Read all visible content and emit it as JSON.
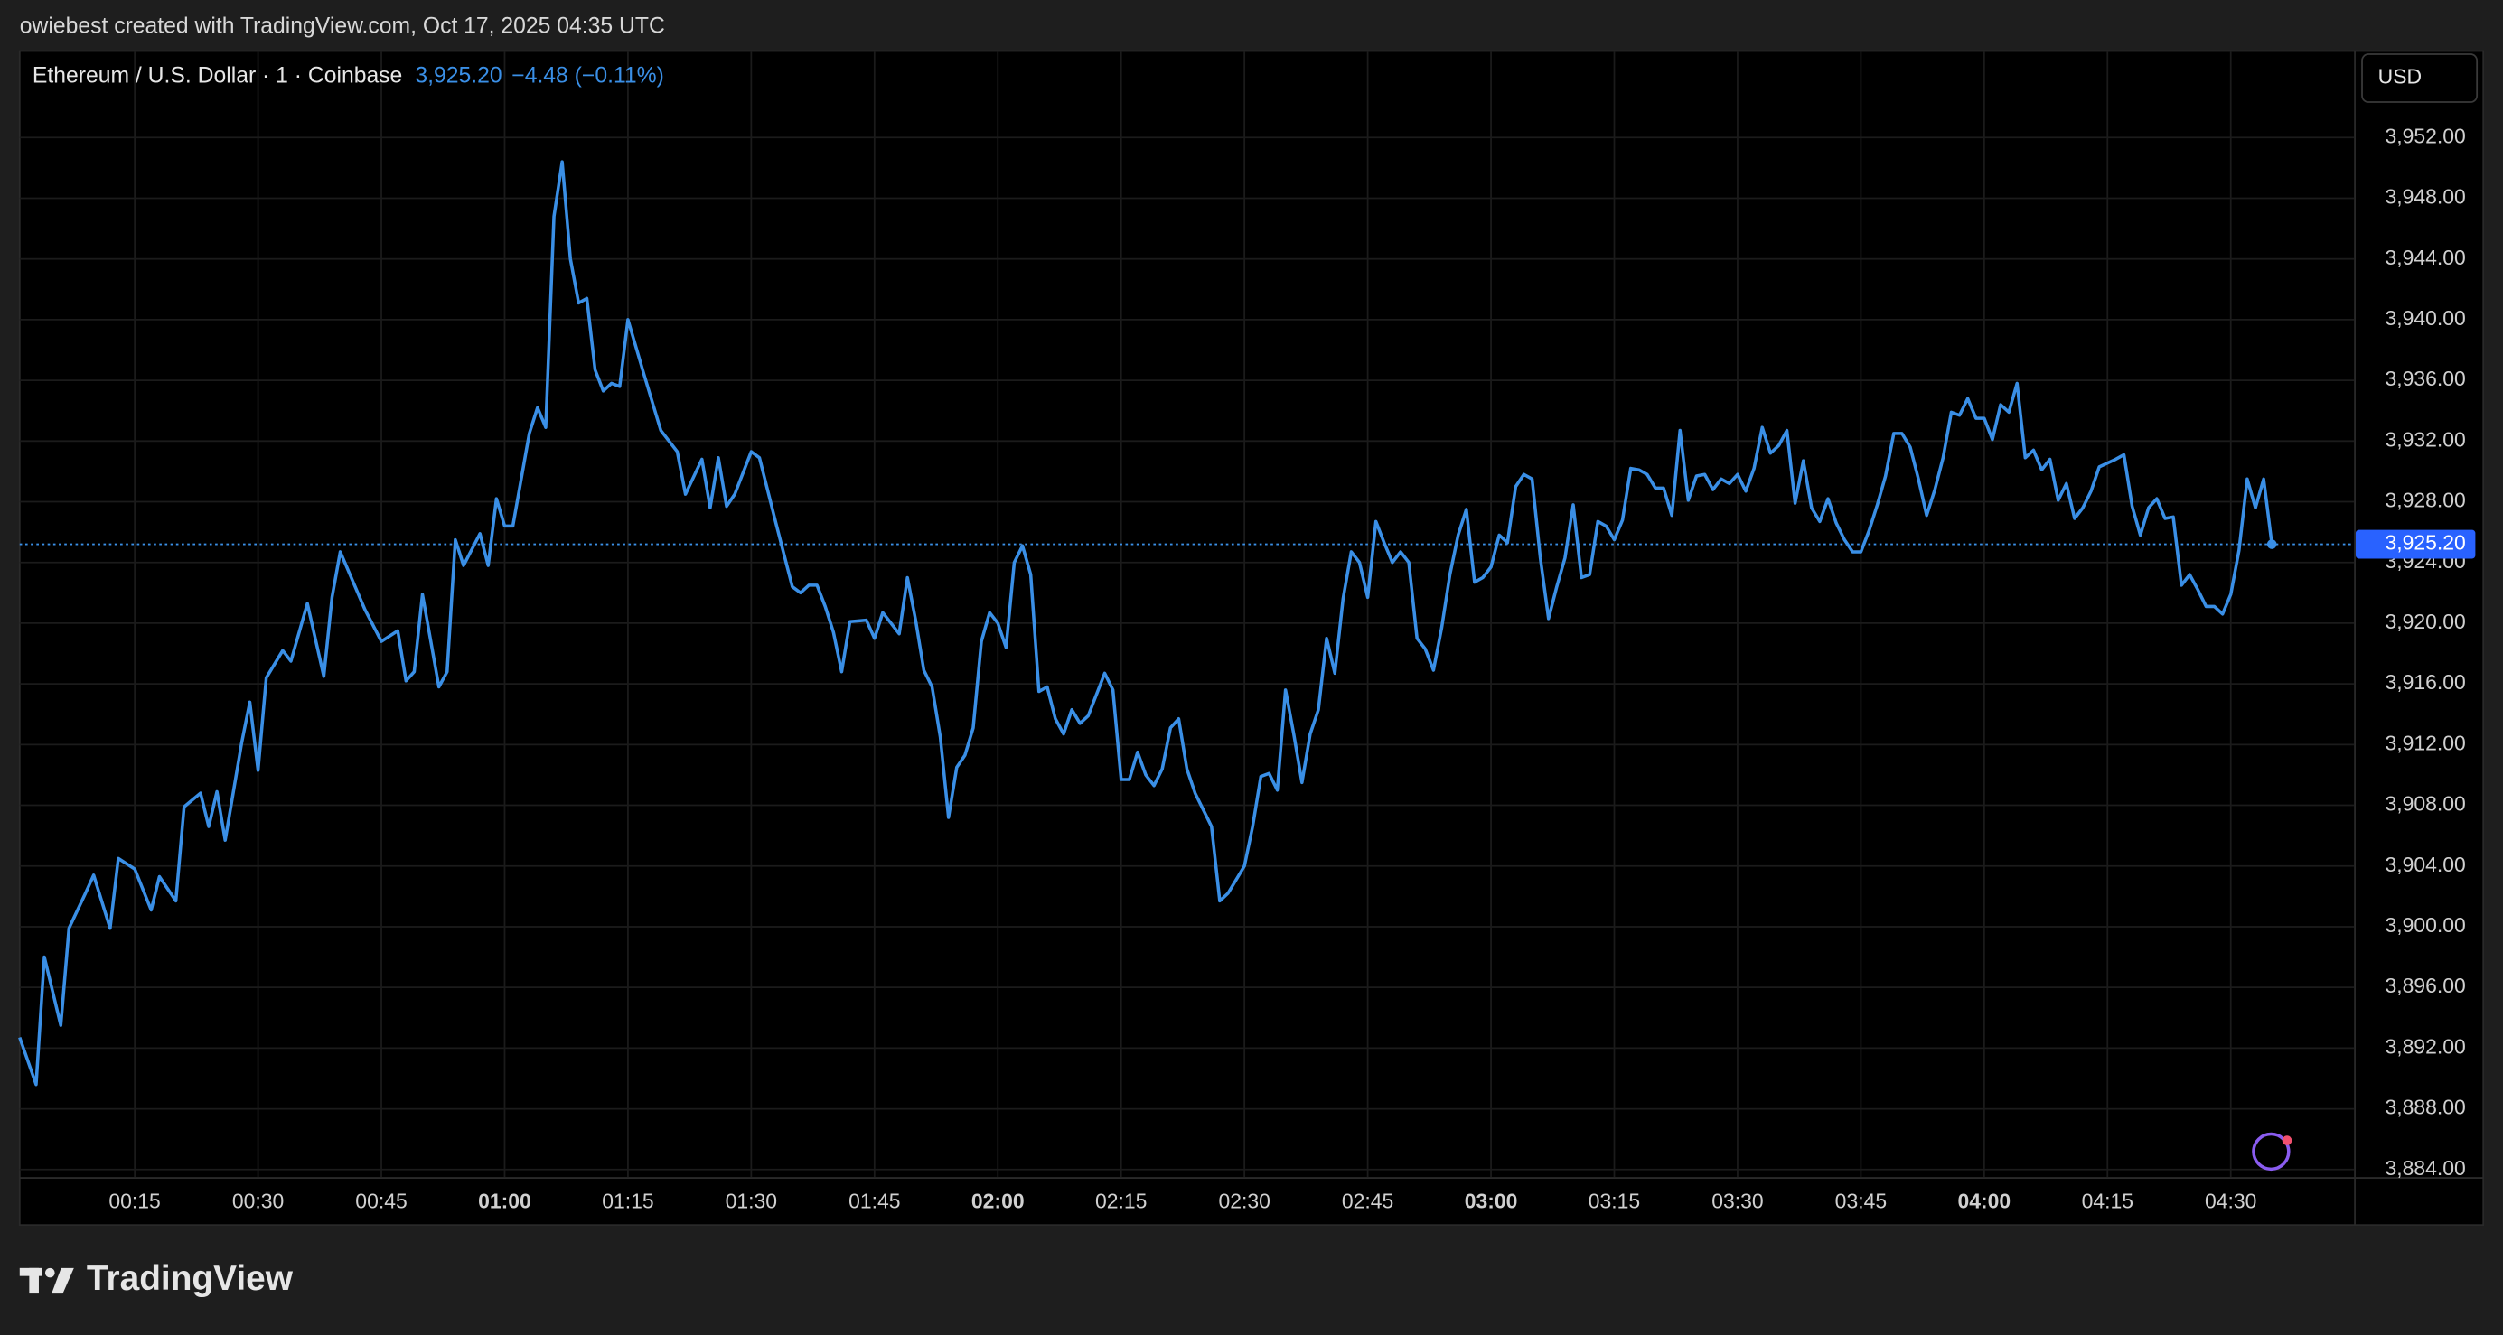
{
  "chart_data": {
    "type": "line",
    "attribution": "owiebest created with TradingView.com, Oct 17, 2025 04:35 UTC",
    "title": "Ethereum / U.S. Dollar · 1 · Coinbase",
    "price_text": "3,925.20",
    "change_text": "−4.48 (−0.11%)",
    "currency": "USD",
    "brand": "TradingView",
    "last_price": {
      "value": 3925.2,
      "label": "3,925.20"
    },
    "xlim": [
      "00:01",
      "04:45"
    ],
    "xticks": [
      "00:15",
      "00:30",
      "00:45",
      "01:00",
      "01:15",
      "01:30",
      "01:45",
      "02:00",
      "02:15",
      "02:30",
      "02:45",
      "03:00",
      "03:15",
      "03:30",
      "03:45",
      "04:00",
      "04:15",
      "04:30"
    ],
    "ylim": [
      3883.5,
      3957.7
    ],
    "yticks": [
      {
        "value": 3884,
        "label": "3,884.00"
      },
      {
        "value": 3888,
        "label": "3,888.00"
      },
      {
        "value": 3892,
        "label": "3,892.00"
      },
      {
        "value": 3896,
        "label": "3,896.00"
      },
      {
        "value": 3900,
        "label": "3,900.00"
      },
      {
        "value": 3904,
        "label": "3,904.00"
      },
      {
        "value": 3908,
        "label": "3,908.00"
      },
      {
        "value": 3912,
        "label": "3,912.00"
      },
      {
        "value": 3916,
        "label": "3,916.00"
      },
      {
        "value": 3920,
        "label": "3,920.00"
      },
      {
        "value": 3924,
        "label": "3,924.00"
      },
      {
        "value": 3928,
        "label": "3,928.00"
      },
      {
        "value": 3932,
        "label": "3,932.00"
      },
      {
        "value": 3936,
        "label": "3,936.00"
      },
      {
        "value": 3940,
        "label": "3,940.00"
      },
      {
        "value": 3944,
        "label": "3,944.00"
      },
      {
        "value": 3948,
        "label": "3,948.00"
      },
      {
        "value": 3952,
        "label": "3,952.00"
      }
    ],
    "grid": true,
    "series": [
      {
        "color": "#3a8fe6",
        "x": [
          "00:01",
          "00:03",
          "00:04",
          "00:06",
          "00:07",
          "00:09",
          "00:10",
          "00:12",
          "00:13",
          "00:15",
          "00:17",
          "00:18",
          "00:20",
          "00:21",
          "00:23",
          "00:24",
          "00:25",
          "00:26",
          "00:28",
          "00:29",
          "00:30",
          "00:31",
          "00:33",
          "00:34",
          "00:36",
          "00:38",
          "00:39",
          "00:40",
          "00:43",
          "00:45",
          "00:47",
          "00:48",
          "00:49",
          "00:50",
          "00:52",
          "00:53",
          "00:54",
          "00:55",
          "00:57",
          "00:58",
          "00:59",
          "01:00",
          "01:01",
          "01:03",
          "01:04",
          "01:05",
          "01:06",
          "01:07",
          "01:08",
          "01:09",
          "01:10",
          "01:11",
          "01:12",
          "01:13",
          "01:14",
          "01:15",
          "01:17",
          "01:19",
          "01:21",
          "01:22",
          "01:24",
          "01:25",
          "01:26",
          "01:27",
          "01:28",
          "01:30",
          "01:31",
          "01:33",
          "01:35",
          "01:36",
          "01:37",
          "01:38",
          "01:39",
          "01:40",
          "01:41",
          "01:42",
          "01:44",
          "01:45",
          "01:46",
          "01:48",
          "01:49",
          "01:50",
          "01:51",
          "01:52",
          "01:53",
          "01:54",
          "01:55",
          "01:56",
          "01:57",
          "01:58",
          "01:59",
          "02:00",
          "02:01",
          "02:02",
          "02:03",
          "02:04",
          "02:05",
          "02:06",
          "02:07",
          "02:08",
          "02:09",
          "02:10",
          "02:11",
          "02:13",
          "02:14",
          "02:15",
          "02:16",
          "02:17",
          "02:18",
          "02:19",
          "02:20",
          "02:21",
          "02:22",
          "02:23",
          "02:24",
          "02:26",
          "02:27",
          "02:28",
          "02:30",
          "02:31",
          "02:32",
          "02:33",
          "02:34",
          "02:35",
          "02:36",
          "02:37",
          "02:38",
          "02:39",
          "02:40",
          "02:41",
          "02:42",
          "02:43",
          "02:44",
          "02:45",
          "02:46",
          "02:47",
          "02:48",
          "02:49",
          "02:50",
          "02:51",
          "02:52",
          "02:53",
          "02:54",
          "02:55",
          "02:56",
          "02:57",
          "02:58",
          "02:59",
          "03:00",
          "03:01",
          "03:02",
          "03:03",
          "03:04",
          "03:05",
          "03:06",
          "03:07",
          "03:08",
          "03:09",
          "03:10",
          "03:11",
          "03:12",
          "03:13",
          "03:14",
          "03:15",
          "03:16",
          "03:17",
          "03:18",
          "03:19",
          "03:20",
          "03:21",
          "03:22",
          "03:23",
          "03:24",
          "03:25",
          "03:26",
          "03:27",
          "03:28",
          "03:29",
          "03:30",
          "03:31",
          "03:32",
          "03:33",
          "03:34",
          "03:35",
          "03:36",
          "03:37",
          "03:38",
          "03:39",
          "03:40",
          "03:41",
          "03:42",
          "03:43",
          "03:44",
          "03:45",
          "03:46",
          "03:47",
          "03:48",
          "03:49",
          "03:50",
          "03:51",
          "03:52",
          "03:53",
          "03:54",
          "03:55",
          "03:56",
          "03:57",
          "03:58",
          "03:59",
          "04:00",
          "04:01",
          "04:02",
          "04:03",
          "04:04",
          "04:05",
          "04:06",
          "04:07",
          "04:08",
          "04:09",
          "04:10",
          "04:11",
          "04:12",
          "04:13",
          "04:14",
          "04:16",
          "04:17",
          "04:18",
          "04:19",
          "04:20",
          "04:21",
          "04:22",
          "04:23",
          "04:24",
          "04:25",
          "04:26",
          "04:27",
          "04:28",
          "04:29",
          "04:30",
          "04:31",
          "04:32",
          "04:33",
          "04:34",
          "04:35"
        ],
        "values": [
          3892.7,
          3889.6,
          3898.0,
          3893.5,
          3899.9,
          3902.2,
          3903.4,
          3899.9,
          3904.5,
          3903.8,
          3901.1,
          3903.3,
          3901.7,
          3907.9,
          3908.8,
          3906.6,
          3908.9,
          3905.7,
          3912.1,
          3914.8,
          3910.3,
          3916.4,
          3918.2,
          3917.5,
          3921.3,
          3916.5,
          3921.7,
          3924.7,
          3920.9,
          3918.8,
          3919.5,
          3916.2,
          3916.8,
          3921.9,
          3915.8,
          3916.8,
          3925.5,
          3923.8,
          3925.9,
          3923.8,
          3928.2,
          3926.4,
          3926.4,
          3932.5,
          3934.2,
          3932.9,
          3946.8,
          3950.4,
          3944.0,
          3941.1,
          3941.4,
          3936.7,
          3935.3,
          3935.8,
          3935.6,
          3940.0,
          3936.3,
          3932.7,
          3931.3,
          3928.5,
          3930.8,
          3927.6,
          3930.9,
          3927.7,
          3928.5,
          3931.3,
          3930.9,
          3926.6,
          3922.4,
          3922.0,
          3922.5,
          3922.5,
          3921.1,
          3919.4,
          3916.8,
          3920.1,
          3920.2,
          3919.0,
          3920.7,
          3919.3,
          3923.0,
          3920.2,
          3916.9,
          3915.8,
          3912.5,
          3907.2,
          3910.5,
          3911.3,
          3913.1,
          3918.8,
          3920.7,
          3920.0,
          3918.4,
          3924.0,
          3925.1,
          3923.2,
          3915.5,
          3915.8,
          3913.7,
          3912.7,
          3914.3,
          3913.4,
          3913.9,
          3916.7,
          3915.6,
          3909.7,
          3909.7,
          3911.5,
          3910.0,
          3909.3,
          3910.4,
          3913.1,
          3913.7,
          3910.4,
          3908.8,
          3906.6,
          3901.7,
          3902.2,
          3904.0,
          3906.6,
          3909.9,
          3910.1,
          3909.0,
          3915.6,
          3912.7,
          3909.5,
          3912.7,
          3914.3,
          3919.0,
          3916.7,
          3921.6,
          3924.7,
          3924.0,
          3921.7,
          3926.7,
          3925.3,
          3924.0,
          3924.7,
          3924.0,
          3919.0,
          3918.3,
          3916.9,
          3919.7,
          3923.2,
          3925.8,
          3927.5,
          3922.7,
          3923.0,
          3923.7,
          3925.8,
          3925.3,
          3929.0,
          3929.8,
          3929.5,
          3924.3,
          3920.3,
          3922.4,
          3924.3,
          3927.8,
          3923.0,
          3923.2,
          3926.7,
          3926.4,
          3925.5,
          3926.8,
          3930.2,
          3930.1,
          3929.8,
          3928.9,
          3928.9,
          3927.1,
          3932.7,
          3928.1,
          3929.7,
          3929.8,
          3928.8,
          3929.5,
          3929.2,
          3929.8,
          3928.7,
          3930.2,
          3932.9,
          3931.2,
          3931.7,
          3932.7,
          3927.9,
          3930.7,
          3927.6,
          3926.7,
          3928.2,
          3926.6,
          3925.5,
          3924.7,
          3924.7,
          3926.1,
          3927.8,
          3929.7,
          3932.5,
          3932.5,
          3931.6,
          3929.5,
          3927.1,
          3928.8,
          3930.9,
          3933.9,
          3933.7,
          3934.8,
          3933.5,
          3933.5,
          3932.1,
          3934.4,
          3933.9,
          3935.8,
          3930.9,
          3931.4,
          3930.1,
          3930.8,
          3928.1,
          3929.2,
          3926.9,
          3927.6,
          3928.7,
          3930.3,
          3930.8,
          3931.1,
          3927.7,
          3925.8,
          3927.6,
          3928.2,
          3926.9,
          3927.0,
          3922.5,
          3923.2,
          3922.2,
          3921.1,
          3921.1,
          3920.6,
          3921.9,
          3924.8,
          3929.5,
          3927.6,
          3929.5,
          3925.2
        ]
      }
    ]
  }
}
